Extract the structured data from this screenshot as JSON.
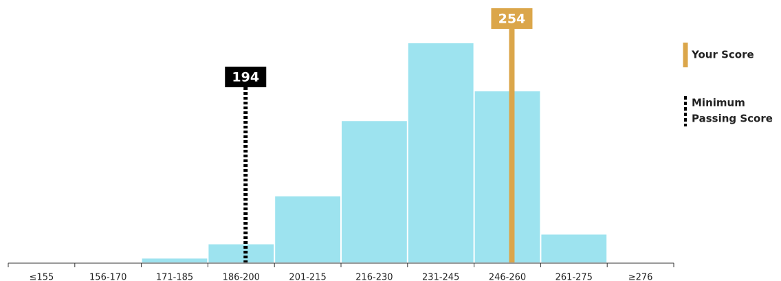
{
  "chart_data": {
    "type": "bar",
    "categories": [
      "≤155",
      "156-170",
      "171-185",
      "186-200",
      "201-215",
      "216-230",
      "231-245",
      "246-260",
      "261-275",
      "≥276"
    ],
    "values": [
      0,
      0,
      0.6,
      2.8,
      10.2,
      21.8,
      33.8,
      26.4,
      4.3,
      0
    ],
    "color": "#9de3ef",
    "markers": [
      {
        "label": [
          "Your Score"
        ],
        "value": 254,
        "color": "#dba64a",
        "style": "solid"
      },
      {
        "label": [
          "Minimum",
          "Passing Score"
        ],
        "value": 194,
        "color": "#000000",
        "style": "dashed"
      }
    ]
  }
}
